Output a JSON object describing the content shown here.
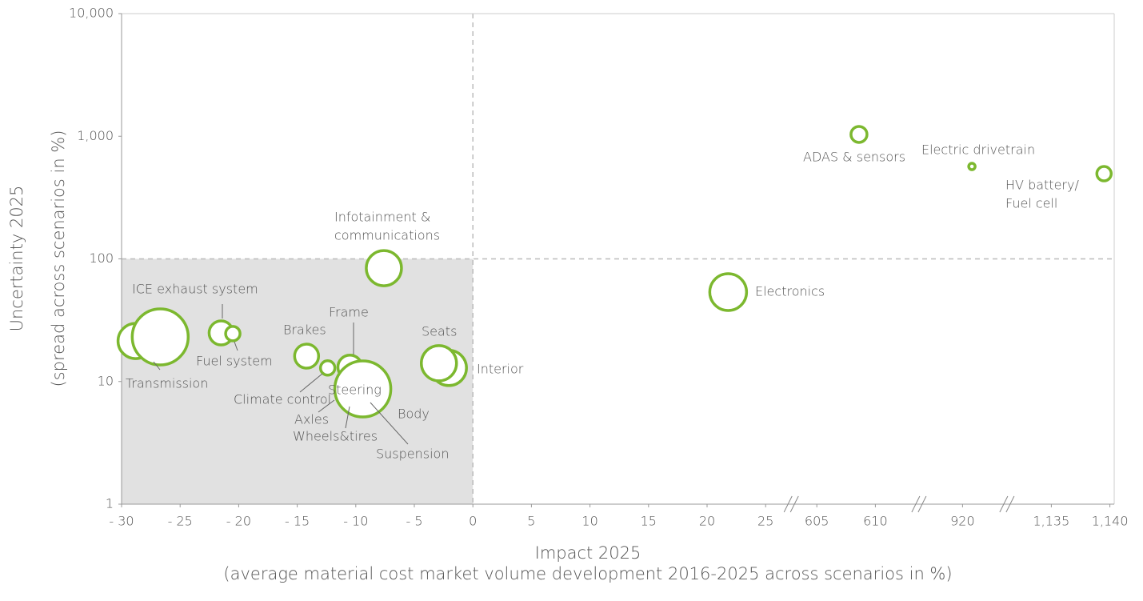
{
  "chart_data": {
    "type": "bubble",
    "xlabel": [
      "Impact 2025",
      "(average material cost market volume development 2016-2025 across scenarios in %)"
    ],
    "ylabel": [
      "Uncertainty 2025",
      "(spread across scenarios in %)"
    ],
    "xlim": [
      -30,
      1140
    ],
    "xbreaks": [
      [
        25,
        605
      ],
      [
        610,
        920
      ],
      [
        920,
        1135
      ]
    ],
    "xticks": [
      {
        "value": -30,
        "label": "- 30"
      },
      {
        "value": -25,
        "label": "- 25"
      },
      {
        "value": -20,
        "label": "- 20"
      },
      {
        "value": -15,
        "label": "- 15"
      },
      {
        "value": -10,
        "label": "- 10"
      },
      {
        "value": -5,
        "label": "- 5"
      },
      0,
      5,
      10,
      15,
      20,
      25,
      605,
      610,
      920,
      {
        "value": 1135,
        "label": "1,135"
      },
      {
        "value": 1140,
        "label": "1,140"
      }
    ],
    "ylim": [
      1,
      10000
    ],
    "ylog": true,
    "yticks": [
      1,
      10,
      100,
      {
        "value": 1000,
        "label": "1,000"
      },
      {
        "value": 10000,
        "label": "10,000"
      }
    ],
    "quadrant": {
      "x": 0,
      "y": 100
    },
    "color": "#7cb82f",
    "points": [
      {
        "name": null,
        "x": -28.8,
        "y": 21.4,
        "size": 22
      },
      {
        "name": [
          "Transmission"
        ],
        "x": -26.7,
        "y": 23.1,
        "size": 35
      },
      {
        "name": [
          "ICE exhaust system"
        ],
        "x": -21.5,
        "y": 24.9,
        "size": 15
      },
      {
        "name": [
          "Fuel system"
        ],
        "x": -20.5,
        "y": 24.6,
        "size": 9
      },
      {
        "name": [
          "Brakes"
        ],
        "x": -14.2,
        "y": 16.1,
        "size": 15
      },
      {
        "name": [
          "Climate control"
        ],
        "x": -12.4,
        "y": 12.9,
        "size": 9
      },
      {
        "name": [
          "Frame"
        ],
        "x": -10.5,
        "y": 13.1,
        "size": 15
      },
      {
        "name": [
          "Suspension"
        ],
        "x": -9.6,
        "y": 8.9,
        "size": 30
      },
      {
        "name": [
          "Body"
        ],
        "x": -9.5,
        "y": 9.2,
        "size": 28
      },
      {
        "name": [
          "Wheels&tires"
        ],
        "x": -9.5,
        "y": 9.0,
        "size": 25
      },
      {
        "name": [
          "Axles"
        ],
        "x": -9.8,
        "y": 9.1,
        "size": 20
      },
      {
        "name": [
          "Steering"
        ],
        "x": -9.4,
        "y": 8.7,
        "size": 35
      },
      {
        "name": [
          "Infotainment &",
          "communications"
        ],
        "x": -7.6,
        "y": 84,
        "size": 22
      },
      {
        "name": [
          "Interior"
        ],
        "x": -2.05,
        "y": 12.9,
        "size": 22
      },
      {
        "name": [
          "Seats"
        ],
        "x": -2.9,
        "y": 14.1,
        "size": 22
      },
      {
        "name": [
          "Electronics"
        ],
        "x": 21.8,
        "y": 53.6,
        "size": 23
      },
      {
        "name": [
          "ADAS & sensors"
        ],
        "x": 608.6,
        "y": 1035,
        "size": 10
      },
      {
        "name": [
          "Electric drivetrain"
        ],
        "x": 920.8,
        "y": 567,
        "size": 4
      },
      {
        "name": [
          "HV battery/",
          "Fuel cell"
        ],
        "x": 1139.5,
        "y": 495,
        "size": 9
      }
    ]
  }
}
